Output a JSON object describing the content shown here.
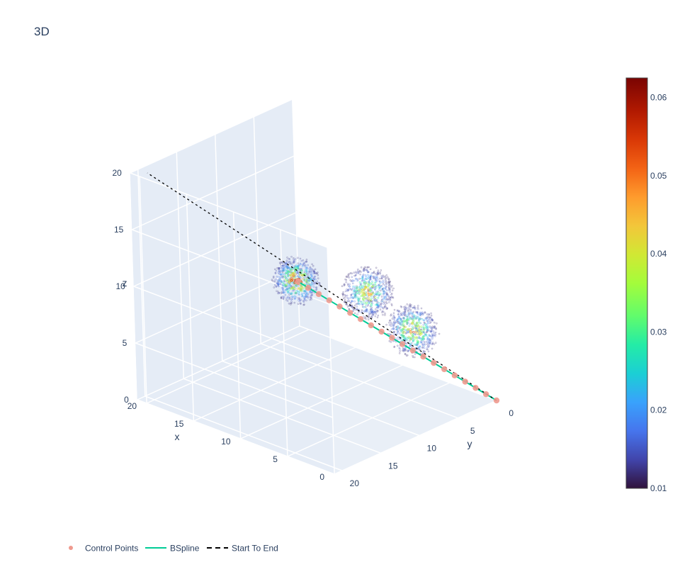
{
  "chart_data": {
    "type": "scatter3d",
    "title": "3D",
    "axes": {
      "x": {
        "label": "x",
        "ticks": [
          0,
          5,
          10,
          15,
          20
        ],
        "range": [
          0,
          21
        ]
      },
      "y": {
        "label": "y",
        "ticks": [
          0,
          5,
          10,
          15,
          20
        ],
        "range": [
          0,
          21
        ]
      },
      "z": {
        "label": "z",
        "ticks": [
          0,
          5,
          10,
          15,
          20
        ],
        "range": [
          0,
          20
        ]
      }
    },
    "series": [
      {
        "name": "Control Points",
        "mode": "markers",
        "color": "#ef9a8f",
        "points": [
          [
            0,
            0,
            0
          ],
          [
            0.6,
            0.6,
            0.55
          ],
          [
            1.2,
            1.2,
            1.1
          ],
          [
            1.8,
            1.8,
            1.65
          ],
          [
            2.4,
            2.4,
            2.2
          ],
          [
            3.0,
            3.0,
            2.75
          ],
          [
            3.6,
            3.6,
            3.3
          ],
          [
            4.2,
            4.2,
            3.85
          ],
          [
            4.8,
            4.8,
            4.4
          ],
          [
            5.4,
            5.4,
            4.95
          ],
          [
            6.0,
            6.0,
            5.5
          ],
          [
            6.6,
            6.6,
            6.05
          ],
          [
            7.2,
            7.2,
            6.6
          ],
          [
            7.8,
            7.8,
            7.15
          ],
          [
            8.4,
            8.4,
            7.7
          ],
          [
            9.0,
            9.0,
            8.25
          ],
          [
            9.6,
            9.6,
            8.8
          ],
          [
            10.2,
            10.2,
            9.35
          ],
          [
            10.8,
            10.8,
            9.9
          ],
          [
            11.4,
            11.4,
            10.45
          ]
        ]
      },
      {
        "name": "BSpline",
        "mode": "lines",
        "color": "#00cc96",
        "points": [
          [
            0,
            0,
            0
          ],
          [
            11.4,
            11.4,
            10.45
          ]
        ]
      },
      {
        "name": "Start To End",
        "mode": "lines",
        "dash": "dash",
        "color": "#000000",
        "points": [
          [
            0,
            0,
            0
          ],
          [
            20,
            20,
            20
          ]
        ]
      }
    ],
    "obstacles": [
      {
        "center": [
          8.0,
          6.5,
          9.0
        ],
        "radius": 2.2,
        "peak": 0.048
      },
      {
        "center": [
          5.0,
          4.5,
          6.0
        ],
        "radius": 2.2,
        "peak": 0.052
      },
      {
        "center": [
          11.5,
          11.5,
          10.5
        ],
        "radius": 2.0,
        "peak": 0.058
      }
    ],
    "colorbar": {
      "colorscale": "Turbo",
      "min": 0.01,
      "max": 0.0625,
      "ticks": [
        "0.01",
        "0.02",
        "0.03",
        "0.04",
        "0.05",
        "0.06"
      ]
    },
    "legend": {
      "placement": "bottom-left",
      "orientation": "horizontal"
    }
  }
}
